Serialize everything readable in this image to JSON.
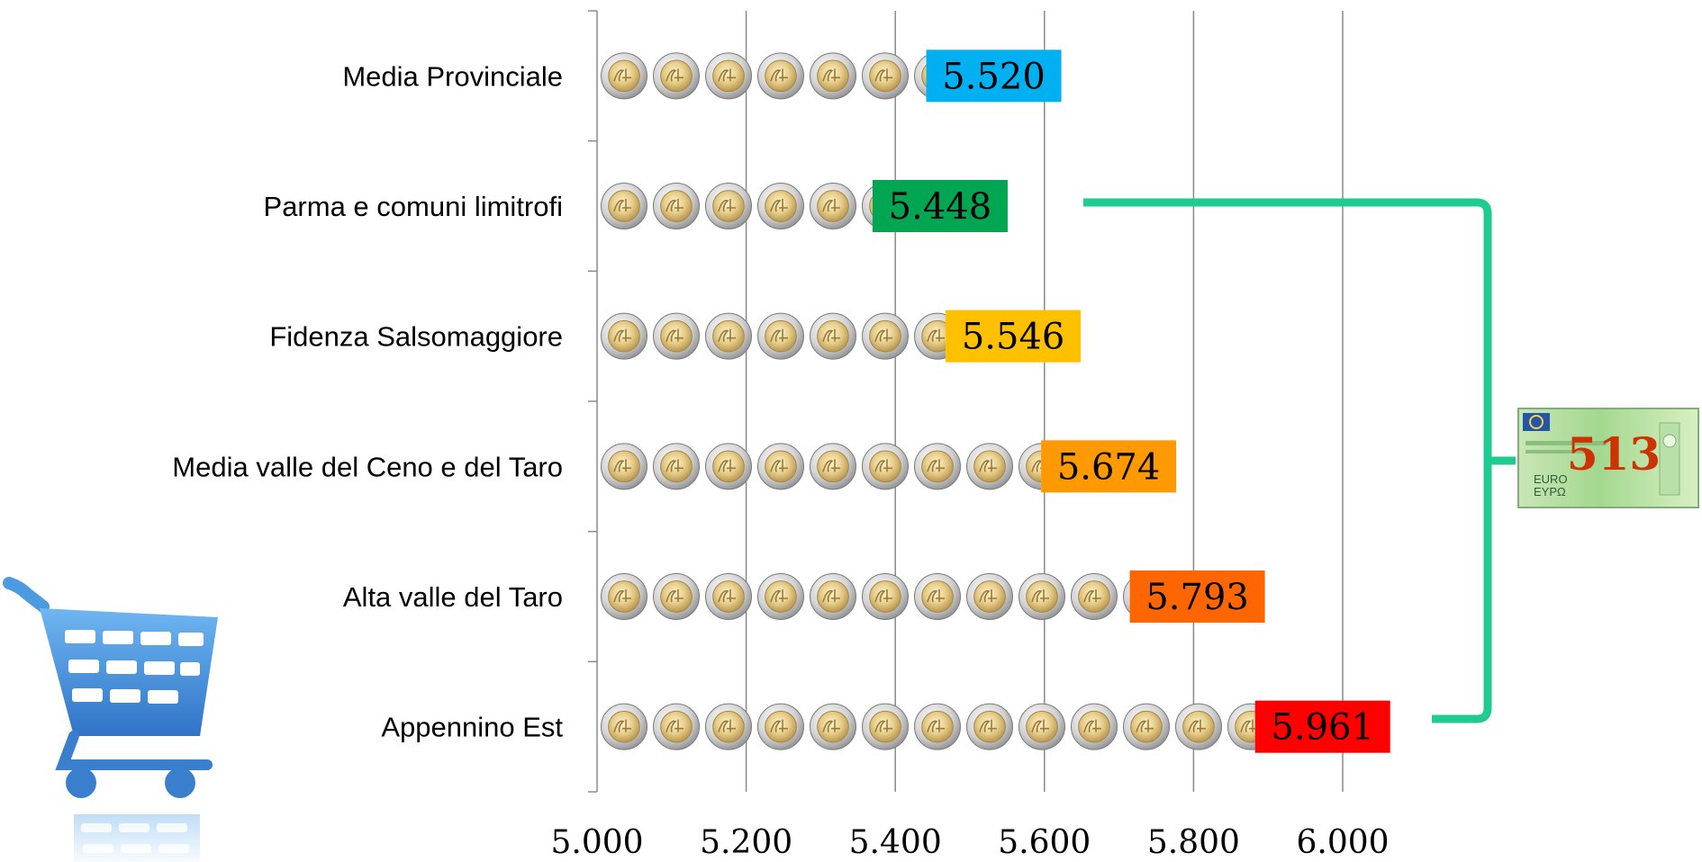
{
  "chart_data": {
    "type": "bar",
    "orientation": "horizontal",
    "categories": [
      "Media Provinciale",
      "Parma e comuni limitrofi",
      "Fidenza Salsomaggiore",
      "Media valle del Ceno e del Taro",
      "Alta valle del Taro",
      "Appennino Est"
    ],
    "values": [
      5520,
      5448,
      5546,
      5674,
      5793,
      5961
    ],
    "data_labels": [
      "5.520",
      "5.448",
      "5.546",
      "5.674",
      "5.793",
      "5.961"
    ],
    "label_colors": [
      "#00b0f0",
      "#00a651",
      "#ffc000",
      "#ff9900",
      "#ff6600",
      "#ff0000"
    ],
    "label_text_colors": [
      "#000000",
      "#000000",
      "#000000",
      "#000000",
      "#000000",
      "#000000"
    ],
    "xlim": [
      5000,
      6000
    ],
    "x_ticks": [
      5000,
      5200,
      5400,
      5600,
      5800,
      6000
    ],
    "x_tick_labels": [
      "5.000",
      "5.200",
      "5.400",
      "5.600",
      "5.800",
      "6.000"
    ],
    "grid": "vertical",
    "bar_fill": "euro-coins",
    "title": "",
    "xlabel": "",
    "ylabel": ""
  },
  "annotation": {
    "difference_label": "513",
    "bracket_color": "#1fcc8f",
    "banknote_color": "#9bd39a",
    "text_color": "#cc3300"
  },
  "decorations": {
    "cart_color": "#3b86d4",
    "cart_icon": "shopping-cart-icon",
    "coin_icon": "euro-coin-icon",
    "banknote_icon": "euro-banknote-icon"
  }
}
